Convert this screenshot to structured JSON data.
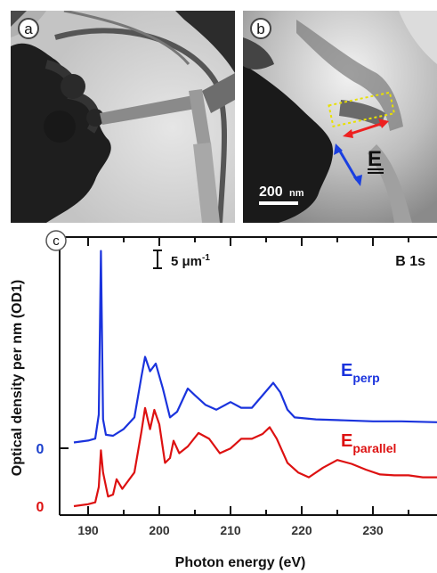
{
  "panel_a": {
    "label": "a"
  },
  "panel_b": {
    "label": "b",
    "scale_bar_value": "200",
    "scale_bar_unit": "nm",
    "field_label": "E",
    "colors": {
      "box": "#e8e000",
      "arrow_red": "#ee2020",
      "arrow_blue": "#1a3fe0"
    }
  },
  "chart_data": {
    "type": "line",
    "panel_label": "c",
    "xlabel": "Photon energy (eV)",
    "ylabel": "Optical density per nm (OD1)",
    "xlim": [
      186,
      239
    ],
    "x_ticks": [
      190,
      200,
      210,
      220,
      230
    ],
    "edge_label": "B 1s",
    "scale_label": "5 μm",
    "scale_label_sup": "-1",
    "zero_labels": [
      {
        "text": "0",
        "series": "perp",
        "color": "#1a3fcc"
      },
      {
        "text": "0",
        "series": "parallel",
        "color": "#dd1111"
      }
    ],
    "series": [
      {
        "name": "E",
        "subscript": "perp",
        "key": "perp",
        "color": "#1a33dd",
        "offset": 0,
        "points": [
          [
            188.0,
            0.06
          ],
          [
            190.0,
            0.08
          ],
          [
            191.0,
            0.1
          ],
          [
            191.5,
            0.35
          ],
          [
            191.8,
            2.05
          ],
          [
            192.1,
            0.3
          ],
          [
            192.5,
            0.14
          ],
          [
            193.5,
            0.13
          ],
          [
            195.0,
            0.2
          ],
          [
            196.5,
            0.32
          ],
          [
            197.5,
            0.75
          ],
          [
            198.0,
            0.95
          ],
          [
            198.7,
            0.8
          ],
          [
            199.5,
            0.88
          ],
          [
            200.5,
            0.62
          ],
          [
            201.5,
            0.32
          ],
          [
            202.5,
            0.38
          ],
          [
            204.0,
            0.62
          ],
          [
            205.0,
            0.55
          ],
          [
            206.5,
            0.45
          ],
          [
            208.0,
            0.4
          ],
          [
            210.0,
            0.48
          ],
          [
            211.5,
            0.42
          ],
          [
            213.0,
            0.42
          ],
          [
            214.5,
            0.55
          ],
          [
            216.0,
            0.68
          ],
          [
            217.0,
            0.58
          ],
          [
            218.0,
            0.4
          ],
          [
            219.0,
            0.32
          ],
          [
            222.0,
            0.3
          ],
          [
            226.0,
            0.29
          ],
          [
            230.0,
            0.28
          ],
          [
            234.0,
            0.28
          ],
          [
            239.0,
            0.27
          ]
        ]
      },
      {
        "name": "E",
        "subscript": "parallel",
        "key": "parallel",
        "color": "#dd1111",
        "offset": 0,
        "points": [
          [
            188.0,
            0.0
          ],
          [
            190.0,
            0.02
          ],
          [
            191.0,
            0.04
          ],
          [
            191.5,
            0.2
          ],
          [
            191.8,
            0.58
          ],
          [
            192.1,
            0.35
          ],
          [
            192.8,
            0.1
          ],
          [
            193.5,
            0.12
          ],
          [
            194.0,
            0.28
          ],
          [
            194.8,
            0.18
          ],
          [
            195.5,
            0.25
          ],
          [
            196.5,
            0.35
          ],
          [
            197.5,
            0.78
          ],
          [
            198.0,
            1.02
          ],
          [
            198.7,
            0.8
          ],
          [
            199.3,
            1.0
          ],
          [
            200.0,
            0.85
          ],
          [
            200.8,
            0.45
          ],
          [
            201.5,
            0.5
          ],
          [
            202.0,
            0.68
          ],
          [
            202.8,
            0.55
          ],
          [
            204.0,
            0.62
          ],
          [
            205.5,
            0.76
          ],
          [
            207.0,
            0.7
          ],
          [
            208.5,
            0.55
          ],
          [
            210.0,
            0.6
          ],
          [
            211.5,
            0.7
          ],
          [
            213.0,
            0.7
          ],
          [
            214.5,
            0.75
          ],
          [
            215.5,
            0.82
          ],
          [
            216.5,
            0.7
          ],
          [
            218.0,
            0.45
          ],
          [
            219.5,
            0.35
          ],
          [
            221.0,
            0.3
          ],
          [
            223.0,
            0.4
          ],
          [
            225.0,
            0.48
          ],
          [
            227.0,
            0.44
          ],
          [
            229.0,
            0.38
          ],
          [
            231.0,
            0.33
          ],
          [
            233.0,
            0.32
          ],
          [
            235.0,
            0.32
          ],
          [
            237.0,
            0.3
          ],
          [
            239.0,
            0.3
          ]
        ]
      }
    ]
  }
}
